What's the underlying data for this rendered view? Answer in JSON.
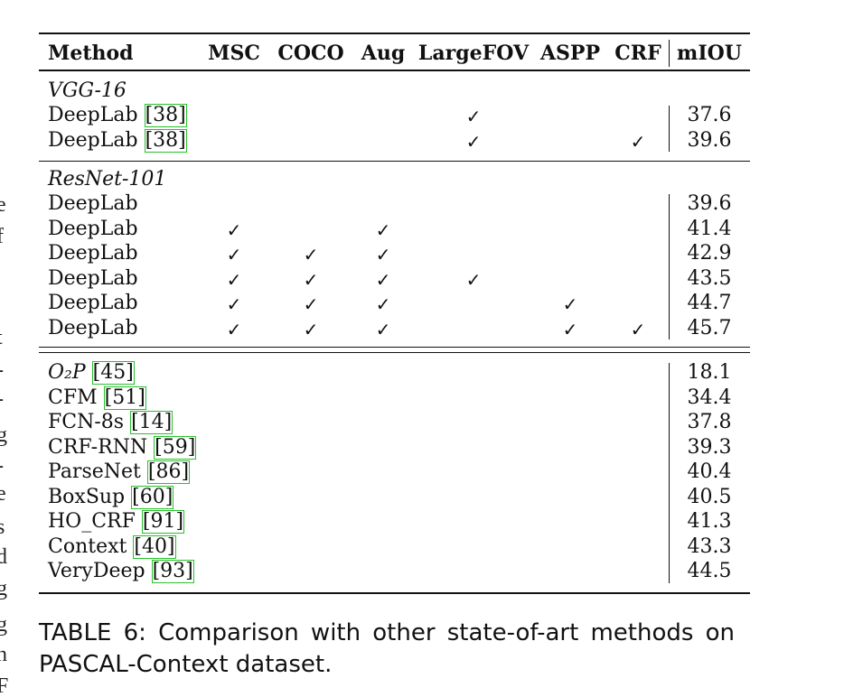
{
  "table": {
    "headers": {
      "method": "Method",
      "msc": "MSC",
      "coco": "COCO",
      "aug": "Aug",
      "largefov": "LargeFOV",
      "aspp": "ASPP",
      "crf": "CRF",
      "miou": "mIOU"
    },
    "check_mark": "✓",
    "sections": [
      {
        "title": "VGG-16",
        "rows": [
          {
            "method": "DeepLab ",
            "cite": "[38]",
            "msc": false,
            "coco": false,
            "aug": false,
            "largefov": true,
            "aspp": false,
            "crf": false,
            "miou": "37.6"
          },
          {
            "method": "DeepLab ",
            "cite": "[38]",
            "msc": false,
            "coco": false,
            "aug": false,
            "largefov": true,
            "aspp": false,
            "crf": true,
            "miou": "39.6"
          }
        ]
      },
      {
        "title": "ResNet-101",
        "rows": [
          {
            "method": "DeepLab",
            "cite": "",
            "msc": false,
            "coco": false,
            "aug": false,
            "largefov": false,
            "aspp": false,
            "crf": false,
            "miou": "39.6"
          },
          {
            "method": "DeepLab",
            "cite": "",
            "msc": true,
            "coco": false,
            "aug": true,
            "largefov": false,
            "aspp": false,
            "crf": false,
            "miou": "41.4"
          },
          {
            "method": "DeepLab",
            "cite": "",
            "msc": true,
            "coco": true,
            "aug": true,
            "largefov": false,
            "aspp": false,
            "crf": false,
            "miou": "42.9"
          },
          {
            "method": "DeepLab",
            "cite": "",
            "msc": true,
            "coco": true,
            "aug": true,
            "largefov": true,
            "aspp": false,
            "crf": false,
            "miou": "43.5"
          },
          {
            "method": "DeepLab",
            "cite": "",
            "msc": true,
            "coco": true,
            "aug": true,
            "largefov": false,
            "aspp": true,
            "crf": false,
            "miou": "44.7"
          },
          {
            "method": "DeepLab",
            "cite": "",
            "msc": true,
            "coco": true,
            "aug": true,
            "largefov": false,
            "aspp": true,
            "crf": true,
            "miou": "45.7"
          }
        ]
      }
    ],
    "others": [
      {
        "method": "O₂P ",
        "cite": "[45]",
        "miou": "18.1",
        "italic": true
      },
      {
        "method": "CFM ",
        "cite": "[51]",
        "miou": "34.4"
      },
      {
        "method": "FCN-8s ",
        "cite": "[14]",
        "miou": "37.8"
      },
      {
        "method": "CRF-RNN ",
        "cite": "[59]",
        "miou": "39.3"
      },
      {
        "method": "ParseNet ",
        "cite": "[86]",
        "miou": "40.4"
      },
      {
        "method": "BoxSup ",
        "cite": "[60]",
        "miou": "40.5"
      },
      {
        "method": "HO_CRF ",
        "cite": "[91]",
        "miou": "41.3"
      },
      {
        "method": "Context ",
        "cite": "[40]",
        "miou": "43.3"
      },
      {
        "method": "VeryDeep ",
        "cite": "[93]",
        "miou": "44.5"
      }
    ]
  },
  "caption": {
    "line1": "TABLE 6: Comparison with other state-of-art methods on",
    "line2": "PASCAL-Context dataset."
  },
  "margin_fragments": [
    "e",
    "f",
    "t",
    "-",
    "-",
    "g",
    "-",
    "e",
    "s",
    "d",
    "g",
    "g",
    "n",
    "F"
  ]
}
